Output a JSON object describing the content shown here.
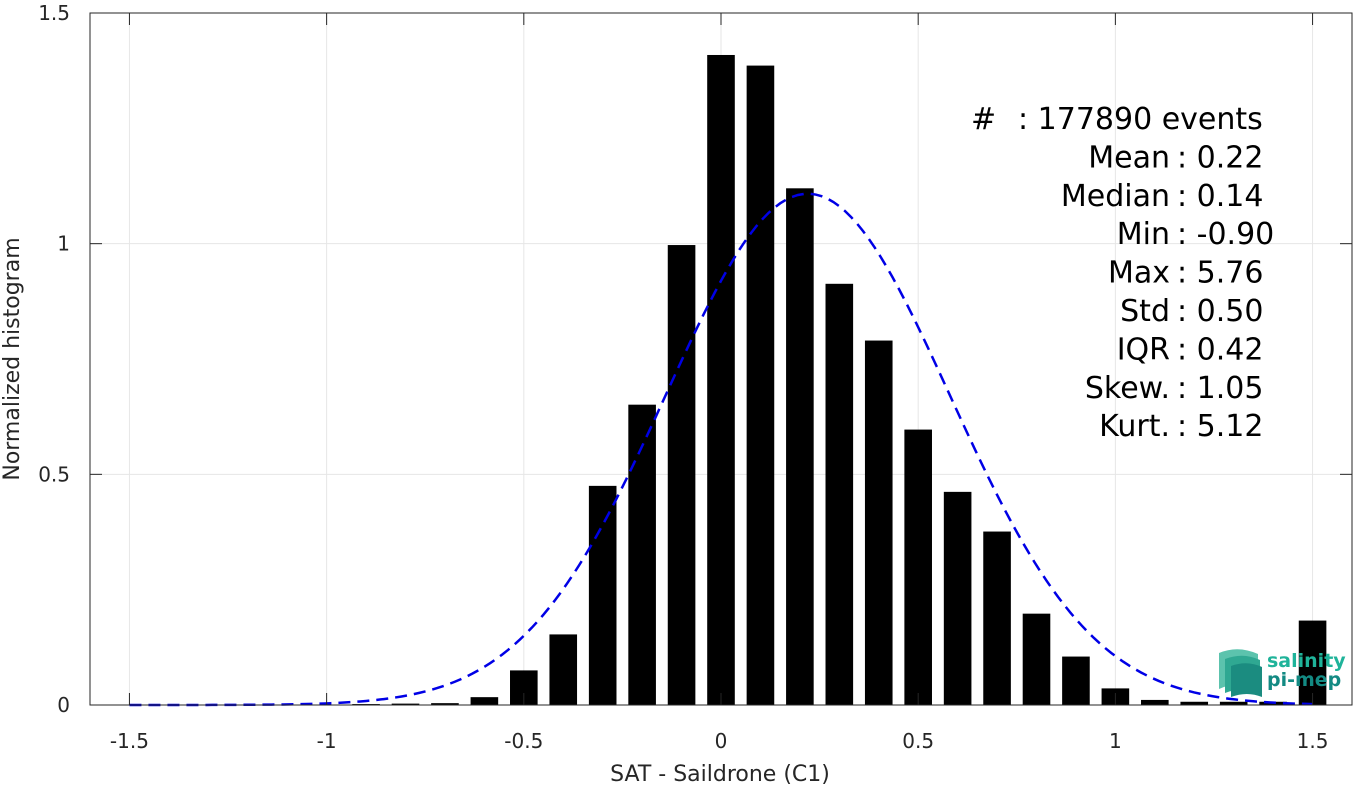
{
  "chart_data": {
    "type": "bar",
    "xlabel": "SAT - Saildrone (C1)",
    "ylabel": "Normalized histogram",
    "xlim": [
      -1.6,
      1.6
    ],
    "ylim": [
      0,
      1.5
    ],
    "xticks": [
      "-1.5",
      "-1",
      "-0.5",
      "0",
      "0.5",
      "1",
      "1.5"
    ],
    "yticks": [
      "0",
      "0.5",
      "1",
      "1.5"
    ],
    "grid": true,
    "bar_color": "#000000",
    "fit_color": "#0000e6",
    "bars": [
      {
        "x": -0.9,
        "y": 0.002
      },
      {
        "x": -0.8,
        "y": 0.003
      },
      {
        "x": -0.7,
        "y": 0.004
      },
      {
        "x": -0.6,
        "y": 0.017
      },
      {
        "x": -0.5,
        "y": 0.075
      },
      {
        "x": -0.4,
        "y": 0.153
      },
      {
        "x": -0.3,
        "y": 0.475
      },
      {
        "x": -0.2,
        "y": 0.651
      },
      {
        "x": -0.1,
        "y": 0.997
      },
      {
        "x": 0.0,
        "y": 1.409
      },
      {
        "x": 0.1,
        "y": 1.386
      },
      {
        "x": 0.2,
        "y": 1.12
      },
      {
        "x": 0.3,
        "y": 0.913
      },
      {
        "x": 0.4,
        "y": 0.79
      },
      {
        "x": 0.5,
        "y": 0.597
      },
      {
        "x": 0.6,
        "y": 0.462
      },
      {
        "x": 0.7,
        "y": 0.376
      },
      {
        "x": 0.8,
        "y": 0.198
      },
      {
        "x": 0.9,
        "y": 0.105
      },
      {
        "x": 1.0,
        "y": 0.036
      },
      {
        "x": 1.1,
        "y": 0.011
      },
      {
        "x": 1.2,
        "y": 0.007
      },
      {
        "x": 1.3,
        "y": 0.007
      },
      {
        "x": 1.4,
        "y": 0.007
      },
      {
        "x": 1.5,
        "y": 0.183
      }
    ],
    "fit_curve": {
      "style": "dashed",
      "mean": 0.22,
      "std": 0.36,
      "x_range": [
        -1.5,
        1.5
      ]
    }
  },
  "stats": [
    {
      "label": "#",
      "value": ": 177890 events"
    },
    {
      "label": "Mean",
      "value": ": 0.22"
    },
    {
      "label": "Median",
      "value": ": 0.14"
    },
    {
      "label": "Min",
      "value": ": -0.90"
    },
    {
      "label": "Max",
      "value": ": 5.76"
    },
    {
      "label": "Std",
      "value": ": 0.50"
    },
    {
      "label": "IQR",
      "value": ": 0.42"
    },
    {
      "label": "Skew.",
      "value": ": 1.05"
    },
    {
      "label": "Kurt.",
      "value": ": 5.12"
    }
  ],
  "logo": {
    "line1": "salinity",
    "line2": "pi-mep",
    "color1": "#1fb39a",
    "color2": "#138a83"
  }
}
